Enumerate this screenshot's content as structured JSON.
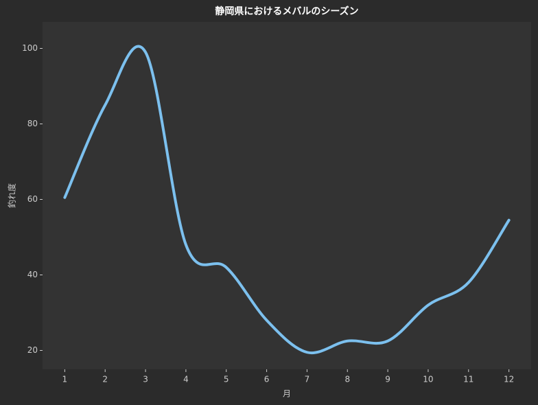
{
  "chart_data": {
    "type": "line",
    "title": "静岡県におけるメバルのシーズン",
    "x_label": "月",
    "y_label": "釣れ度",
    "x": [
      1,
      2,
      3,
      4,
      5,
      6,
      7,
      8,
      9,
      10,
      11,
      12
    ],
    "series": [
      {
        "name": "釣れ度",
        "color": "#7cc0ee",
        "values": [
          60.5,
          85,
          99,
          48,
          42,
          28,
          19.5,
          22.5,
          22.5,
          32,
          38,
          54.5
        ]
      }
    ],
    "xlim": [
      0.45,
      12.55
    ],
    "ylim": [
      15,
      107
    ],
    "xticks": [
      1,
      2,
      3,
      4,
      5,
      6,
      7,
      8,
      9,
      10,
      11,
      12
    ],
    "yticks": [
      20,
      40,
      60,
      80,
      100
    ],
    "grid": false
  }
}
